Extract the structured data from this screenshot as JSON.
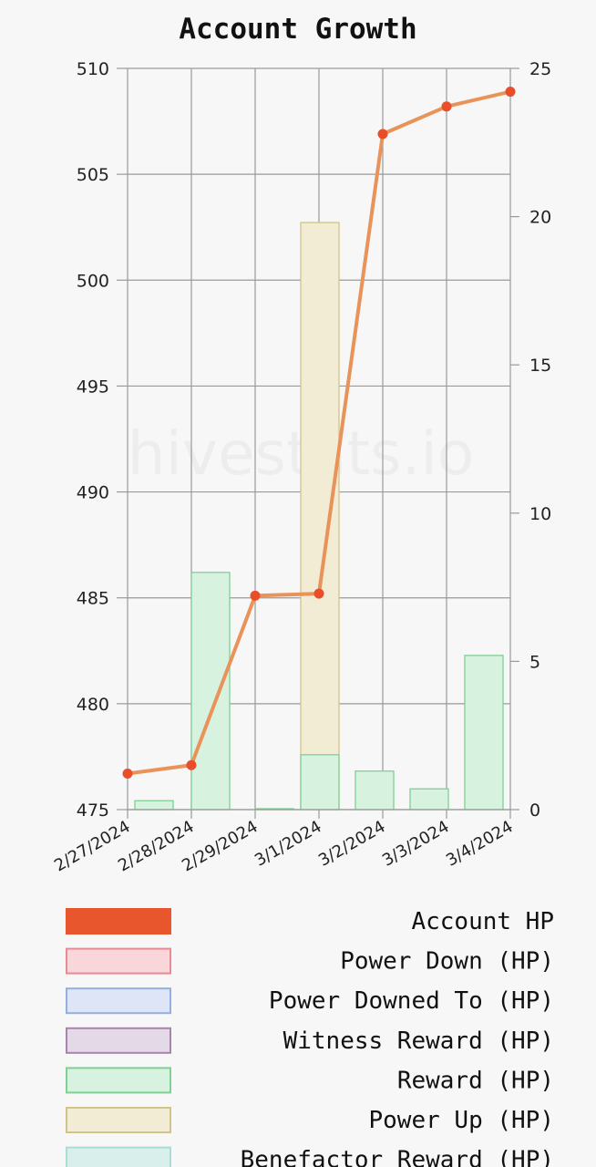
{
  "watermark": "hivestats.io",
  "chart_data": {
    "type": "bar",
    "title": "Account Growth",
    "categories": [
      "2/27/2024",
      "2/28/2024",
      "2/29/2024",
      "3/1/2024",
      "3/2/2024",
      "3/3/2024",
      "3/4/2024"
    ],
    "y_left": {
      "min": 475,
      "max": 510,
      "ticks": [
        475,
        480,
        485,
        490,
        495,
        500,
        505,
        510
      ]
    },
    "y_right": {
      "min": 0,
      "max": 25,
      "ticks": [
        0,
        5,
        10,
        15,
        20,
        25
      ]
    },
    "grid": true,
    "legend_position": "bottom",
    "line_series": {
      "name": "Account HP",
      "axis": "left",
      "values": [
        476.7,
        477.1,
        485.1,
        485.2,
        506.9,
        508.2,
        508.9
      ],
      "line_color": "#e8935a",
      "point_color": "#e84e2a"
    },
    "bar_series": [
      {
        "name": "Reward (HP)",
        "axis": "right",
        "values": [
          0.3,
          8.0,
          0.03,
          1.85,
          1.3,
          0.7,
          5.2
        ],
        "fill": "#d8f2e0",
        "stroke": "#7fcf96"
      },
      {
        "name": "Power Up (HP)",
        "axis": "right",
        "values": [
          0,
          0,
          0,
          19.8,
          0,
          0,
          0
        ],
        "fill": "#f2ecd5",
        "stroke": "#cfc48a"
      }
    ],
    "legend": [
      {
        "label": "Account HP",
        "fill": "#e8562d",
        "stroke": "#e8562d"
      },
      {
        "label": "Power Down (HP)",
        "fill": "#f8d6da",
        "stroke": "#e88a94"
      },
      {
        "label": "Power Downed To (HP)",
        "fill": "#dde5f6",
        "stroke": "#93afdf"
      },
      {
        "label": "Witness Reward (HP)",
        "fill": "#e4d9e6",
        "stroke": "#a883ad"
      },
      {
        "label": "Reward (HP)",
        "fill": "#d8f2e0",
        "stroke": "#7fcf96"
      },
      {
        "label": "Power Up (HP)",
        "fill": "#f2ecd5",
        "stroke": "#cfc48a"
      },
      {
        "label": "Benefactor Reward (HP)",
        "fill": "#d9efec",
        "stroke": "#a7ddd5"
      }
    ]
  }
}
